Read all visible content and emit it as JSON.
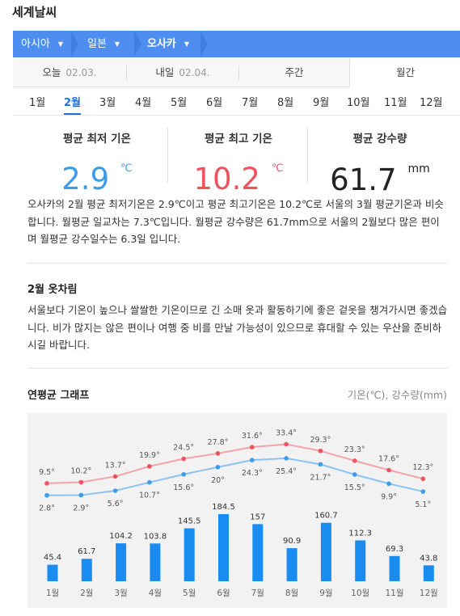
{
  "title": "세계날씨",
  "breadcrumb": [
    "아시아",
    "일본",
    "오사카"
  ],
  "day_tabs": [
    {
      "label": "오늘",
      "date": "02.03."
    },
    {
      "label": "내일",
      "date": "02.04."
    },
    {
      "label": "주간",
      "date": ""
    },
    {
      "label": "월간",
      "date": ""
    }
  ],
  "months": [
    "1월",
    "2월",
    "3월",
    "4월",
    "5월",
    "6월",
    "7월",
    "8월",
    "9월",
    "10월",
    "11월",
    "12월"
  ],
  "active_month": "2월",
  "stats": {
    "min_label": "평균 최저 기온",
    "min_value": "2.9",
    "min_unit": "℃",
    "max_label": "평균 최고 기온",
    "max_value": "10.2",
    "max_unit": "℃",
    "rain_label": "평균 강수량",
    "rain_value": "61.7",
    "rain_unit": "mm"
  },
  "summary": "오사카의 2월 평균 최저기온은 2.9℃이고 평균 최고기온은 10.2℃로 서울의 3월 평균기온과 비슷합니다. 월평균 일교차는 7.3℃입니다. 월평균 강수량은 61.7mm으로 서울의 2월보다 많은 편이며 월평균 강수일수는 6.3일 입니다.",
  "clothing_title": "2월 옷차림",
  "clothing_text": "서울보다 기온이 높으나 쌀쌀한 기온이므로 긴 소매 옷과 활동하기에 좋은 겉옷을 챙겨가시면 좋겠습니다. 비가 많지는 않은 편이나 여행 중 비를 만날 가능성이 있으므로 휴대할 수 있는 우산을 준비하시길 바랍니다.",
  "graph_title": "연평균 그래프",
  "graph_legend": "기온(℃), 강수량(mm)",
  "colors": {
    "accent": "#1f6fe0",
    "min_temp": "#3d9ce8",
    "max_temp": "#f0525f",
    "bar": "#1a8cf0"
  },
  "chart_data": {
    "type": "line+bar",
    "categories": [
      "1월",
      "2월",
      "3월",
      "4월",
      "5월",
      "6월",
      "7월",
      "8월",
      "9월",
      "10월",
      "11월",
      "12월"
    ],
    "high_labels": [
      "9.5°",
      "10.2°",
      "13.7°",
      "19.9°",
      "24.5°",
      "27.8°",
      "31.6°",
      "33.4°",
      "29.3°",
      "23.3°",
      "17.6°",
      "12.3°"
    ],
    "low_labels": [
      "2.8°",
      "2.9°",
      "5.6°",
      "10.7°",
      "15.6°",
      "20°",
      "24.3°",
      "25.4°",
      "21.7°",
      "15.5°",
      "9.9°",
      "5.1°"
    ],
    "high": [
      9.5,
      10.2,
      13.7,
      19.9,
      24.5,
      27.8,
      31.6,
      33.4,
      29.3,
      23.3,
      17.6,
      12.3
    ],
    "low": [
      2.8,
      2.9,
      5.6,
      10.7,
      15.6,
      20,
      24.3,
      25.4,
      21.7,
      15.5,
      9.9,
      5.1
    ],
    "precip": [
      45.4,
      61.7,
      104.2,
      103.8,
      145.5,
      184.5,
      157,
      90.9,
      160.7,
      112.3,
      69.3,
      43.8
    ]
  }
}
